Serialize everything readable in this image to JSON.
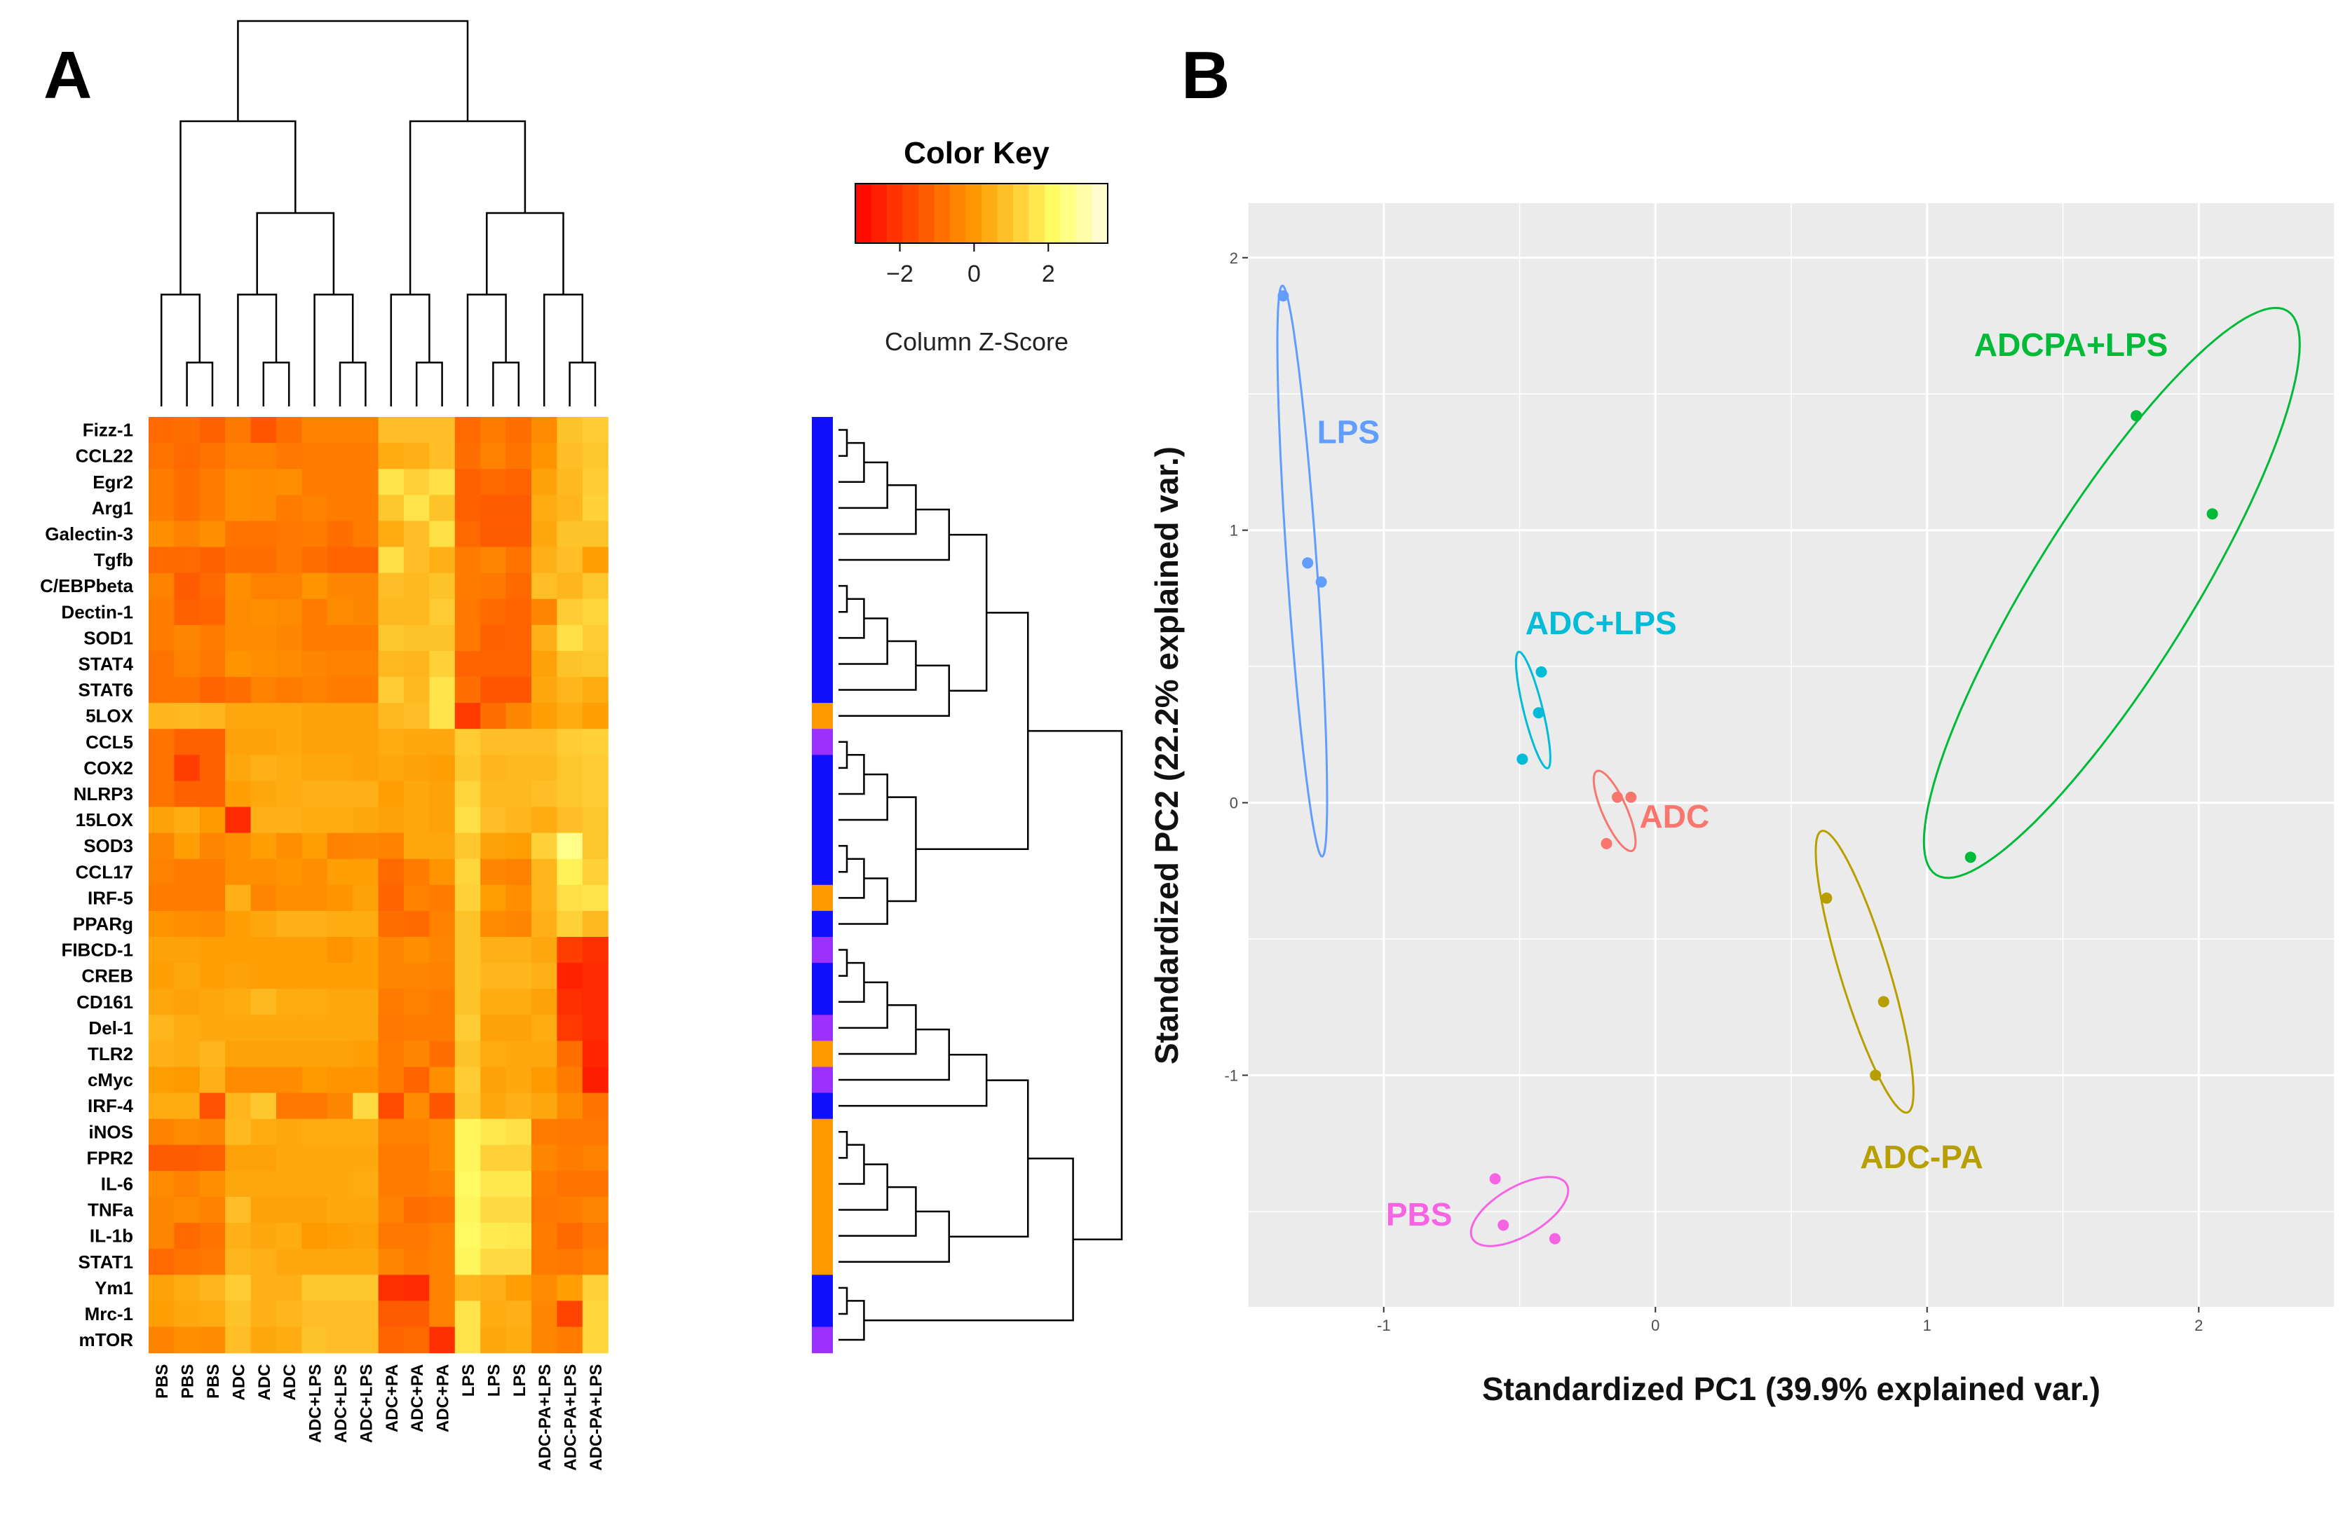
{
  "panels": {
    "a_label": "A",
    "b_label": "B"
  },
  "colors": {
    "low": "#ff0000",
    "mid": "#ff9900",
    "high": "#ffff66",
    "top": "#fffde0",
    "group_blue": "#1010ff",
    "group_orange": "#ff9900",
    "group_purple": "#9b30ff",
    "panel_bg": "#ebebeb"
  },
  "color_key": {
    "title": "Color Key",
    "subtitle": "Column Z-Score",
    "ticks": [
      {
        "value": -2,
        "label": "−2"
      },
      {
        "value": 0,
        "label": "0"
      },
      {
        "value": 2,
        "label": "2"
      }
    ],
    "range": [
      -3.2,
      3.6
    ]
  },
  "chart_data": [
    {
      "type": "heatmap",
      "title": "",
      "columns": [
        "PBS",
        "PBS",
        "PBS",
        "ADC",
        "ADC",
        "ADC",
        "ADC+LPS",
        "ADC+LPS",
        "ADC+LPS",
        "ADC+PA",
        "ADC+PA",
        "ADC+PA",
        "LPS",
        "LPS",
        "LPS",
        "ADC-PA+LPS",
        "ADC-PA+LPS",
        "ADC-PA+LPS"
      ],
      "rows": [
        "Fizz-1",
        "CCL22",
        "Egr2",
        "Arg1",
        "Galectin-3",
        "Tgfb",
        "C/EBPbeta",
        "Dectin-1",
        "SOD1",
        "STAT4",
        "STAT6",
        "5LOX",
        "CCL5",
        "COX2",
        "NLRP3",
        "15LOX",
        "SOD3",
        "CCL17",
        "IRF-5",
        "PPARg",
        "FIBCD-1",
        "CREB",
        "CD161",
        "Del-1",
        "TLR2",
        "cMyc",
        "IRF-4",
        "iNOS",
        "FPR2",
        "IL-6",
        "TNFa",
        "IL-1b",
        "STAT1",
        "Ym1",
        "Mrc-1",
        "mTOR"
      ],
      "row_groups": [
        "blue",
        "blue",
        "blue",
        "blue",
        "blue",
        "blue",
        "blue",
        "blue",
        "blue",
        "blue",
        "blue",
        "orange",
        "purple",
        "blue",
        "blue",
        "blue",
        "blue",
        "blue",
        "orange",
        "blue",
        "purple",
        "blue",
        "blue",
        "purple",
        "orange",
        "purple",
        "blue",
        "orange",
        "orange",
        "orange",
        "orange",
        "orange",
        "orange",
        "blue",
        "blue",
        "purple"
      ],
      "values": [
        [
          -1.0,
          -0.9,
          -1.2,
          -0.7,
          -1.4,
          -0.9,
          -0.5,
          -0.5,
          -0.5,
          0.8,
          0.8,
          0.8,
          -1.0,
          -0.6,
          -0.9,
          -0.3,
          0.9,
          1.1
        ],
        [
          -0.8,
          -1.0,
          -0.8,
          -0.5,
          -0.5,
          -0.7,
          -0.6,
          -0.6,
          -0.6,
          0.4,
          0.5,
          0.8,
          -0.9,
          -0.5,
          -0.8,
          -0.1,
          0.8,
          1.0
        ],
        [
          -0.6,
          -0.9,
          -0.6,
          -0.2,
          -0.3,
          -0.2,
          -0.6,
          -0.6,
          -0.6,
          1.6,
          1.2,
          1.5,
          -1.2,
          -1.0,
          -1.1,
          0.2,
          0.7,
          1.1
        ],
        [
          -0.6,
          -0.9,
          -0.6,
          -0.2,
          -0.3,
          -0.6,
          -0.5,
          -0.6,
          -0.6,
          1.0,
          1.6,
          0.9,
          -1.2,
          -1.3,
          -1.3,
          0.4,
          0.6,
          1.2
        ],
        [
          -0.2,
          -0.5,
          -0.2,
          -0.8,
          -0.8,
          -0.7,
          -0.6,
          -0.9,
          -0.6,
          0.4,
          0.8,
          1.5,
          -1.0,
          -1.3,
          -1.3,
          0.3,
          0.9,
          0.9
        ],
        [
          -1.0,
          -1.0,
          -1.2,
          -0.9,
          -0.9,
          -0.7,
          -0.9,
          -1.1,
          -1.1,
          1.5,
          0.8,
          0.5,
          -0.6,
          -0.4,
          -0.8,
          0.5,
          0.8,
          0.1
        ],
        [
          -0.5,
          -1.3,
          -1.0,
          -0.2,
          -0.5,
          -0.5,
          -0.1,
          -0.4,
          -0.4,
          0.8,
          0.7,
          0.9,
          -0.6,
          -0.7,
          -1.0,
          0.8,
          0.6,
          1.0
        ],
        [
          -0.6,
          -1.2,
          -1.1,
          -0.3,
          -0.2,
          -0.3,
          -0.6,
          -0.3,
          -0.4,
          0.7,
          0.7,
          1.1,
          -0.7,
          -1.0,
          -1.1,
          -0.4,
          1.1,
          1.3
        ],
        [
          -0.6,
          -0.4,
          -0.6,
          -0.3,
          -0.3,
          -0.4,
          -0.6,
          -0.6,
          -0.6,
          1.0,
          0.9,
          0.9,
          -0.7,
          -1.2,
          -1.1,
          0.5,
          1.5,
          1.1
        ],
        [
          -0.8,
          -0.5,
          -0.7,
          -0.1,
          -0.2,
          -0.3,
          -0.4,
          -0.5,
          -0.5,
          0.7,
          0.6,
          1.2,
          -1.1,
          -1.1,
          -1.1,
          0.2,
          0.9,
          1.0
        ],
        [
          -0.8,
          -0.8,
          -1.1,
          -0.9,
          -0.5,
          -0.6,
          -0.5,
          -0.6,
          -0.6,
          1.1,
          0.7,
          1.6,
          -0.9,
          -1.4,
          -1.4,
          0.3,
          0.6,
          0.4
        ],
        [
          0.6,
          0.7,
          0.6,
          0.3,
          0.3,
          0.3,
          0.2,
          0.2,
          0.2,
          0.7,
          0.8,
          1.6,
          -2.0,
          -0.9,
          -0.4,
          0.1,
          0.4,
          0.1
        ],
        [
          -0.8,
          -1.2,
          -1.2,
          0.2,
          0.2,
          0.3,
          0.2,
          0.2,
          0.2,
          0.4,
          0.3,
          0.3,
          1.1,
          0.8,
          0.8,
          0.8,
          1.1,
          1.2
        ],
        [
          -0.8,
          -1.9,
          -1.2,
          0.3,
          0.5,
          0.4,
          0.3,
          0.3,
          0.2,
          0.3,
          0.2,
          0.1,
          1.0,
          0.6,
          0.7,
          0.7,
          1.0,
          1.1
        ],
        [
          -0.8,
          -1.2,
          -1.2,
          0.1,
          0.3,
          0.4,
          0.5,
          0.5,
          0.5,
          0.1,
          0.3,
          0.2,
          1.3,
          0.7,
          0.7,
          0.8,
          1.0,
          1.1
        ],
        [
          0.2,
          0.4,
          0.0,
          -2.3,
          0.5,
          0.5,
          0.4,
          0.4,
          0.3,
          0.2,
          0.3,
          0.2,
          1.5,
          0.8,
          0.6,
          0.4,
          0.8,
          1.0
        ],
        [
          -0.4,
          0.1,
          -0.4,
          -0.2,
          0.1,
          -0.2,
          0.1,
          -0.5,
          -0.4,
          -0.5,
          0.3,
          0.3,
          1.0,
          0.2,
          0.1,
          1.2,
          2.6,
          1.0
        ],
        [
          -0.5,
          -0.6,
          -0.6,
          -0.2,
          -0.2,
          -0.1,
          -0.2,
          0.1,
          0.1,
          -1.0,
          -0.6,
          -0.1,
          1.3,
          -0.4,
          -0.5,
          0.6,
          1.9,
          1.2
        ],
        [
          -0.6,
          -0.6,
          -0.6,
          0.5,
          -0.4,
          -0.2,
          -0.2,
          -0.1,
          0.2,
          -1.1,
          -0.5,
          -0.6,
          1.2,
          0.1,
          -0.2,
          0.6,
          1.5,
          1.6
        ],
        [
          -0.1,
          -0.2,
          -0.3,
          0.1,
          0.3,
          0.5,
          0.5,
          0.4,
          0.4,
          -0.9,
          -1.0,
          -0.5,
          0.9,
          -0.3,
          -0.4,
          0.5,
          1.2,
          0.7
        ],
        [
          0.2,
          0.2,
          0.1,
          0.1,
          0.1,
          0.1,
          0.1,
          -0.1,
          0.1,
          -0.4,
          -0.2,
          -0.4,
          0.9,
          0.5,
          0.5,
          0.3,
          -1.9,
          -2.2
        ],
        [
          0.1,
          0.3,
          0.1,
          0.2,
          0.1,
          0.1,
          0.1,
          0.1,
          0.1,
          -0.4,
          -0.4,
          -0.5,
          0.9,
          0.6,
          0.6,
          0.5,
          -2.5,
          -2.3
        ],
        [
          0.3,
          0.2,
          0.3,
          0.4,
          0.7,
          0.4,
          0.4,
          0.3,
          0.3,
          -0.6,
          -0.5,
          -0.6,
          0.9,
          0.4,
          0.4,
          0.2,
          -2.2,
          -2.3
        ],
        [
          0.6,
          0.4,
          0.3,
          0.3,
          0.3,
          0.3,
          0.3,
          0.3,
          0.3,
          -0.7,
          -0.6,
          -0.6,
          1.1,
          0.2,
          0.2,
          0.4,
          -2.0,
          -2.3
        ],
        [
          0.5,
          0.4,
          0.6,
          0.2,
          0.2,
          0.2,
          0.2,
          0.2,
          0.1,
          -0.6,
          -0.4,
          -0.9,
          0.9,
          0.4,
          0.3,
          0.3,
          -0.9,
          -2.4
        ],
        [
          0.1,
          0.0,
          0.5,
          -0.3,
          -0.3,
          -0.3,
          0.0,
          -0.1,
          -0.1,
          -0.6,
          -1.1,
          -0.2,
          1.1,
          0.2,
          0.3,
          0.0,
          -0.6,
          -2.6
        ],
        [
          0.4,
          0.4,
          -1.5,
          0.6,
          1.0,
          -0.7,
          -0.7,
          -0.4,
          1.4,
          -1.6,
          -0.3,
          -1.4,
          1.0,
          0.3,
          0.5,
          0.3,
          -0.3,
          -0.8
        ],
        [
          -0.5,
          -0.3,
          -0.4,
          0.7,
          0.4,
          0.3,
          0.4,
          0.4,
          0.4,
          -0.5,
          -0.5,
          -0.3,
          2.0,
          1.7,
          1.5,
          -0.6,
          -0.7,
          -0.7
        ],
        [
          -1.3,
          -1.3,
          -1.2,
          0.2,
          0.2,
          0.3,
          0.3,
          0.3,
          0.3,
          -0.6,
          -0.6,
          -0.3,
          2.0,
          1.2,
          1.2,
          -0.4,
          -0.6,
          -0.5
        ],
        [
          -0.3,
          -0.5,
          -0.2,
          0.3,
          0.3,
          0.3,
          0.3,
          0.3,
          0.4,
          -0.6,
          -0.6,
          -0.5,
          2.1,
          1.7,
          1.7,
          -0.6,
          -0.8,
          -0.8
        ],
        [
          -0.4,
          -0.3,
          -0.5,
          0.8,
          0.2,
          0.2,
          0.2,
          0.3,
          0.3,
          -0.5,
          -0.9,
          -0.8,
          2.0,
          1.4,
          1.4,
          -0.7,
          -0.6,
          -0.4
        ],
        [
          -0.4,
          -1.0,
          -0.8,
          0.5,
          0.3,
          0.4,
          0.0,
          0.1,
          0.2,
          -0.7,
          -0.7,
          -0.5,
          2.1,
          1.8,
          1.7,
          -0.6,
          -1.0,
          -0.7
        ],
        [
          -1.0,
          -0.8,
          -0.7,
          0.6,
          0.5,
          0.3,
          0.3,
          0.3,
          0.3,
          -0.4,
          -0.6,
          -0.5,
          2.0,
          1.4,
          1.4,
          -0.6,
          -0.7,
          -0.5
        ],
        [
          0.2,
          0.4,
          0.6,
          1.1,
          0.5,
          0.5,
          1.0,
          1.0,
          1.0,
          -2.2,
          -2.3,
          -0.5,
          0.6,
          0.5,
          0.1,
          -0.3,
          0.1,
          1.2
        ],
        [
          0.1,
          0.3,
          0.4,
          0.9,
          0.5,
          0.6,
          0.8,
          0.8,
          0.8,
          -1.3,
          -1.3,
          -0.5,
          1.6,
          0.4,
          0.5,
          -0.4,
          -1.8,
          1.3
        ],
        [
          -0.5,
          -0.2,
          -0.3,
          0.8,
          0.3,
          0.4,
          0.9,
          0.8,
          0.8,
          -1.1,
          -1.0,
          -2.2,
          1.6,
          0.3,
          0.4,
          -0.4,
          -0.6,
          1.3
        ]
      ]
    },
    {
      "type": "scatter",
      "title": "",
      "xlabel": "Standardized PC1 (39.9% explained var.)",
      "ylabel": "Standardized PC2 (22.2% explained var.)",
      "xlim": [
        -1.5,
        2.5
      ],
      "ylim": [
        -1.85,
        2.2
      ],
      "xticks": [
        {
          "value": -1,
          "label": "-1"
        },
        {
          "value": 0,
          "label": "0"
        },
        {
          "value": 1,
          "label": "1"
        },
        {
          "value": 2,
          "label": "2"
        }
      ],
      "yticks": [
        {
          "value": -1,
          "label": "-1"
        },
        {
          "value": 0,
          "label": "0"
        },
        {
          "value": 1,
          "label": "1"
        },
        {
          "value": 2,
          "label": "2"
        }
      ],
      "grid": true,
      "series": [
        {
          "name": "LPS",
          "color": "#619cff",
          "points": [
            [
              -1.37,
              1.86
            ],
            [
              -1.28,
              0.88
            ],
            [
              -1.23,
              0.81
            ]
          ],
          "ellipse": {
            "cx": -1.3,
            "cy": 0.85,
            "rx": 1.05,
            "ry": 0.055,
            "angle_deg": -86
          },
          "label_at": [
            -1.13,
            1.36
          ]
        },
        {
          "name": "ADC+LPS",
          "color": "#00bcd8",
          "points": [
            [
              -0.42,
              0.48
            ],
            [
              -0.43,
              0.33
            ],
            [
              -0.49,
              0.16
            ]
          ],
          "ellipse": {
            "cx": -0.45,
            "cy": 0.34,
            "rx": 0.22,
            "ry": 0.035,
            "angle_deg": -76
          },
          "label_at": [
            -0.2,
            0.66
          ]
        },
        {
          "name": "ADC",
          "color": "#f8766d",
          "points": [
            [
              -0.14,
              0.02
            ],
            [
              -0.09,
              0.02
            ],
            [
              -0.18,
              -0.15
            ]
          ],
          "ellipse": {
            "cx": -0.15,
            "cy": -0.03,
            "rx": 0.16,
            "ry": 0.045,
            "angle_deg": -66
          },
          "label_at": [
            0.07,
            -0.05
          ]
        },
        {
          "name": "ADC-PA",
          "color": "#b79f00",
          "points": [
            [
              0.63,
              -0.35
            ],
            [
              0.84,
              -0.73
            ],
            [
              0.81,
              -1.0
            ]
          ],
          "ellipse": {
            "cx": 0.77,
            "cy": -0.62,
            "rx": 0.54,
            "ry": 0.09,
            "angle_deg": -73
          },
          "label_at": [
            0.98,
            -1.3
          ]
        },
        {
          "name": "PBS",
          "color": "#f564e3",
          "points": [
            [
              -0.59,
              -1.38
            ],
            [
              -0.56,
              -1.55
            ],
            [
              -0.37,
              -1.6
            ]
          ],
          "ellipse": {
            "cx": -0.5,
            "cy": -1.5,
            "rx": 0.2,
            "ry": 0.09,
            "angle_deg": 30
          },
          "label_at": [
            -0.87,
            -1.51
          ]
        },
        {
          "name": "ADCPA+LPS",
          "color": "#00ba38",
          "points": [
            [
              1.77,
              1.42
            ],
            [
              2.05,
              1.06
            ],
            [
              1.16,
              -0.2
            ]
          ],
          "ellipse": {
            "cx": 1.68,
            "cy": 0.77,
            "rx": 1.22,
            "ry": 0.29,
            "angle_deg": 58
          },
          "label_at": [
            1.53,
            1.68
          ]
        }
      ]
    }
  ]
}
